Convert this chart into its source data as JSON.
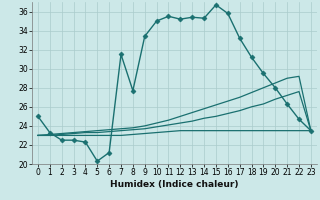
{
  "xlabel": "Humidex (Indice chaleur)",
  "xlim": [
    -0.5,
    23.5
  ],
  "ylim": [
    20,
    37
  ],
  "yticks": [
    20,
    22,
    24,
    26,
    28,
    30,
    32,
    34,
    36
  ],
  "xticks": [
    0,
    1,
    2,
    3,
    4,
    5,
    6,
    7,
    8,
    9,
    10,
    11,
    12,
    13,
    14,
    15,
    16,
    17,
    18,
    19,
    20,
    21,
    22,
    23
  ],
  "background_color": "#cce8e8",
  "grid_color": "#aacccc",
  "line_color": "#1a7070",
  "lines": [
    {
      "x": [
        0,
        1,
        2,
        3,
        4,
        5,
        6,
        7,
        8,
        9,
        10,
        11,
        12,
        13,
        14,
        15,
        16,
        17,
        18,
        19,
        20,
        21,
        22,
        23
      ],
      "y": [
        25.0,
        23.3,
        22.5,
        22.5,
        22.3,
        20.3,
        21.2,
        31.5,
        27.7,
        33.4,
        35.0,
        35.5,
        35.2,
        35.4,
        35.3,
        36.7,
        35.8,
        33.2,
        31.2,
        29.5,
        28.0,
        26.3,
        24.7,
        23.5
      ],
      "marker": "D",
      "markersize": 2.5,
      "linewidth": 1.0
    },
    {
      "x": [
        0,
        1,
        2,
        3,
        4,
        5,
        6,
        7,
        8,
        9,
        10,
        11,
        12,
        13,
        14,
        15,
        16,
        17,
        18,
        19,
        20,
        21,
        22,
        23
      ],
      "y": [
        23.0,
        23.1,
        23.2,
        23.3,
        23.4,
        23.5,
        23.6,
        23.7,
        23.8,
        24.0,
        24.3,
        24.6,
        25.0,
        25.4,
        25.8,
        26.2,
        26.6,
        27.0,
        27.5,
        28.0,
        28.5,
        29.0,
        29.2,
        23.5
      ],
      "marker": null,
      "markersize": 0,
      "linewidth": 0.9
    },
    {
      "x": [
        0,
        1,
        2,
        3,
        4,
        5,
        6,
        7,
        8,
        9,
        10,
        11,
        12,
        13,
        14,
        15,
        16,
        17,
        18,
        19,
        20,
        21,
        22,
        23
      ],
      "y": [
        23.0,
        23.0,
        23.1,
        23.2,
        23.3,
        23.3,
        23.4,
        23.5,
        23.6,
        23.7,
        23.9,
        24.1,
        24.3,
        24.5,
        24.8,
        25.0,
        25.3,
        25.6,
        26.0,
        26.3,
        26.8,
        27.2,
        27.6,
        23.5
      ],
      "marker": null,
      "markersize": 0,
      "linewidth": 0.9
    },
    {
      "x": [
        0,
        1,
        2,
        3,
        4,
        5,
        6,
        7,
        8,
        9,
        10,
        11,
        12,
        13,
        14,
        15,
        16,
        17,
        18,
        19,
        20,
        21,
        22,
        23
      ],
      "y": [
        23.0,
        23.0,
        23.0,
        23.0,
        23.0,
        23.0,
        23.0,
        23.0,
        23.1,
        23.2,
        23.3,
        23.4,
        23.5,
        23.5,
        23.5,
        23.5,
        23.5,
        23.5,
        23.5,
        23.5,
        23.5,
        23.5,
        23.5,
        23.5
      ],
      "marker": null,
      "markersize": 0,
      "linewidth": 0.9
    }
  ]
}
